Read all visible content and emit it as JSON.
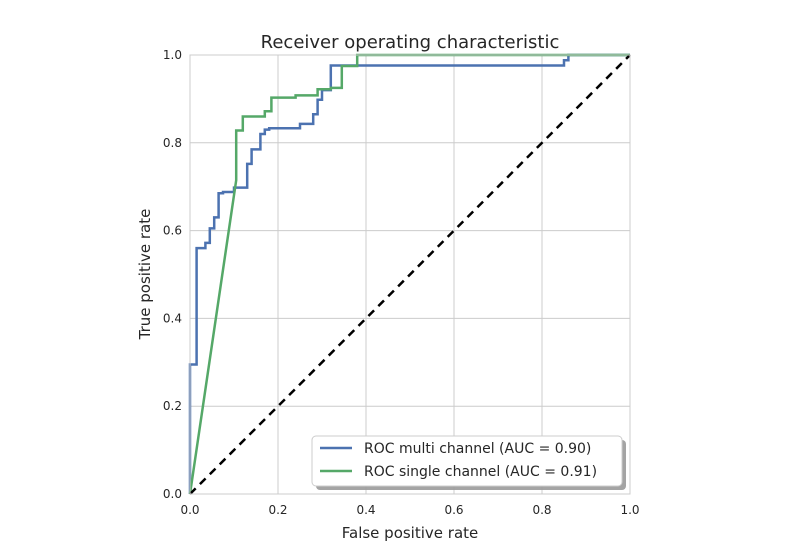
{
  "chart_data": {
    "type": "line",
    "title": "Receiver operating characteristic",
    "xlabel": "False positive rate",
    "ylabel": "True positive rate",
    "xlim": [
      0.0,
      1.0
    ],
    "ylim": [
      0.0,
      1.0
    ],
    "xticks": [
      "0.0",
      "0.2",
      "0.4",
      "0.6",
      "0.8",
      "1.0"
    ],
    "yticks": [
      "0.0",
      "0.2",
      "0.4",
      "0.6",
      "0.8",
      "1.0"
    ],
    "grid": true,
    "legend_position": "lower right",
    "series": [
      {
        "name": "ROC multi channel (AUC = 0.90)",
        "color": "#4c72b0",
        "x": [
          0.0,
          0.0,
          0.0,
          0.0,
          0.015,
          0.015,
          0.015,
          0.035,
          0.035,
          0.045,
          0.045,
          0.055,
          0.055,
          0.065,
          0.065,
          0.075,
          0.075,
          0.1,
          0.1,
          0.13,
          0.13,
          0.14,
          0.14,
          0.16,
          0.16,
          0.17,
          0.17,
          0.18,
          0.18,
          0.25,
          0.25,
          0.28,
          0.28,
          0.29,
          0.29,
          0.3,
          0.3,
          0.32,
          0.32,
          0.33,
          0.33,
          0.85,
          0.85,
          0.86,
          0.86,
          1.0
        ],
        "y": [
          0.0,
          0.05,
          0.1,
          0.295,
          0.295,
          0.56,
          0.56,
          0.56,
          0.572,
          0.572,
          0.605,
          0.605,
          0.63,
          0.63,
          0.685,
          0.685,
          0.688,
          0.688,
          0.698,
          0.698,
          0.752,
          0.752,
          0.785,
          0.785,
          0.82,
          0.82,
          0.83,
          0.83,
          0.833,
          0.833,
          0.843,
          0.843,
          0.865,
          0.865,
          0.898,
          0.898,
          0.92,
          0.92,
          0.976,
          0.976,
          0.976,
          0.976,
          0.988,
          0.988,
          1.0,
          1.0
        ]
      },
      {
        "name": "ROC single channel (AUC = 0.91)",
        "color": "#55a868",
        "x": [
          0.0,
          0.105,
          0.105,
          0.12,
          0.12,
          0.17,
          0.17,
          0.185,
          0.185,
          0.24,
          0.24,
          0.29,
          0.29,
          0.32,
          0.32,
          0.345,
          0.345,
          0.38,
          0.38,
          1.0
        ],
        "y": [
          0.0,
          0.715,
          0.828,
          0.828,
          0.86,
          0.86,
          0.872,
          0.872,
          0.903,
          0.903,
          0.908,
          0.908,
          0.922,
          0.922,
          0.925,
          0.925,
          0.975,
          0.975,
          1.0,
          1.0
        ]
      },
      {
        "color": "#000000",
        "style": "dashed",
        "x": [
          0.0,
          1.0
        ],
        "y": [
          0.0,
          1.0
        ]
      }
    ]
  }
}
